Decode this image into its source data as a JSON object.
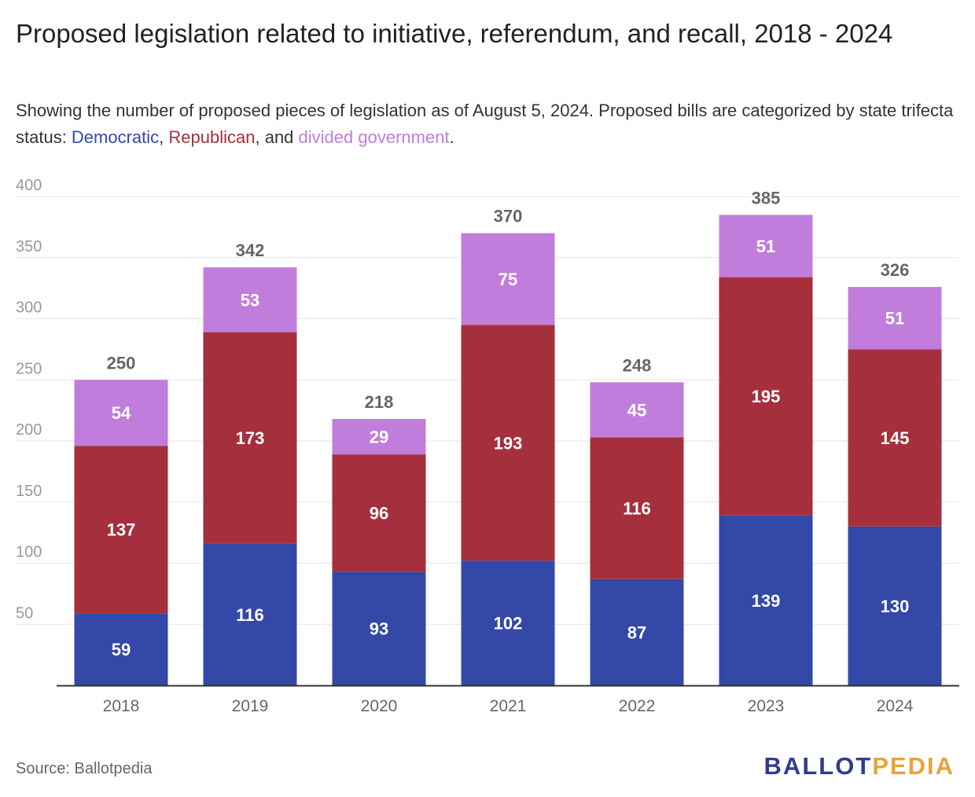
{
  "title": "Proposed legislation related to initiative, referendum, and recall, 2018 - 2024",
  "subtitle": {
    "prefix": "Showing the number of proposed pieces of legislation as of August 5, 2024. Proposed bills are categorized by state trifecta status: ",
    "democratic": "Democratic",
    "sep1": ", ",
    "republican": "Republican",
    "sep2": ", and ",
    "divided": "divided government",
    "suffix": "."
  },
  "source": "Source: Ballotpedia",
  "logo": {
    "part1": "BALLOT",
    "part2": "PEDIA"
  },
  "colors": {
    "democratic": "#3448a8",
    "republican": "#a62f3d",
    "divided": "#c17ddc",
    "grid": "#e3e3e3",
    "axis": "#333333",
    "tick_label": "#999999",
    "total_label": "#666666"
  },
  "chart_data": {
    "type": "bar",
    "stacked": true,
    "categories": [
      "2018",
      "2019",
      "2020",
      "2021",
      "2022",
      "2023",
      "2024"
    ],
    "series": [
      {
        "name": "Democratic",
        "color": "#3448a8",
        "values": [
          59,
          116,
          93,
          102,
          87,
          139,
          130
        ]
      },
      {
        "name": "Republican",
        "color": "#a62f3d",
        "values": [
          137,
          173,
          96,
          193,
          116,
          195,
          145
        ]
      },
      {
        "name": "divided government",
        "color": "#c17ddc",
        "values": [
          54,
          53,
          29,
          75,
          45,
          51,
          51
        ]
      }
    ],
    "totals": [
      250,
      342,
      218,
      370,
      248,
      385,
      326
    ],
    "ylim": [
      0,
      400
    ],
    "yticks": [
      50,
      100,
      150,
      200,
      250,
      300,
      350,
      400
    ],
    "grid": true
  }
}
